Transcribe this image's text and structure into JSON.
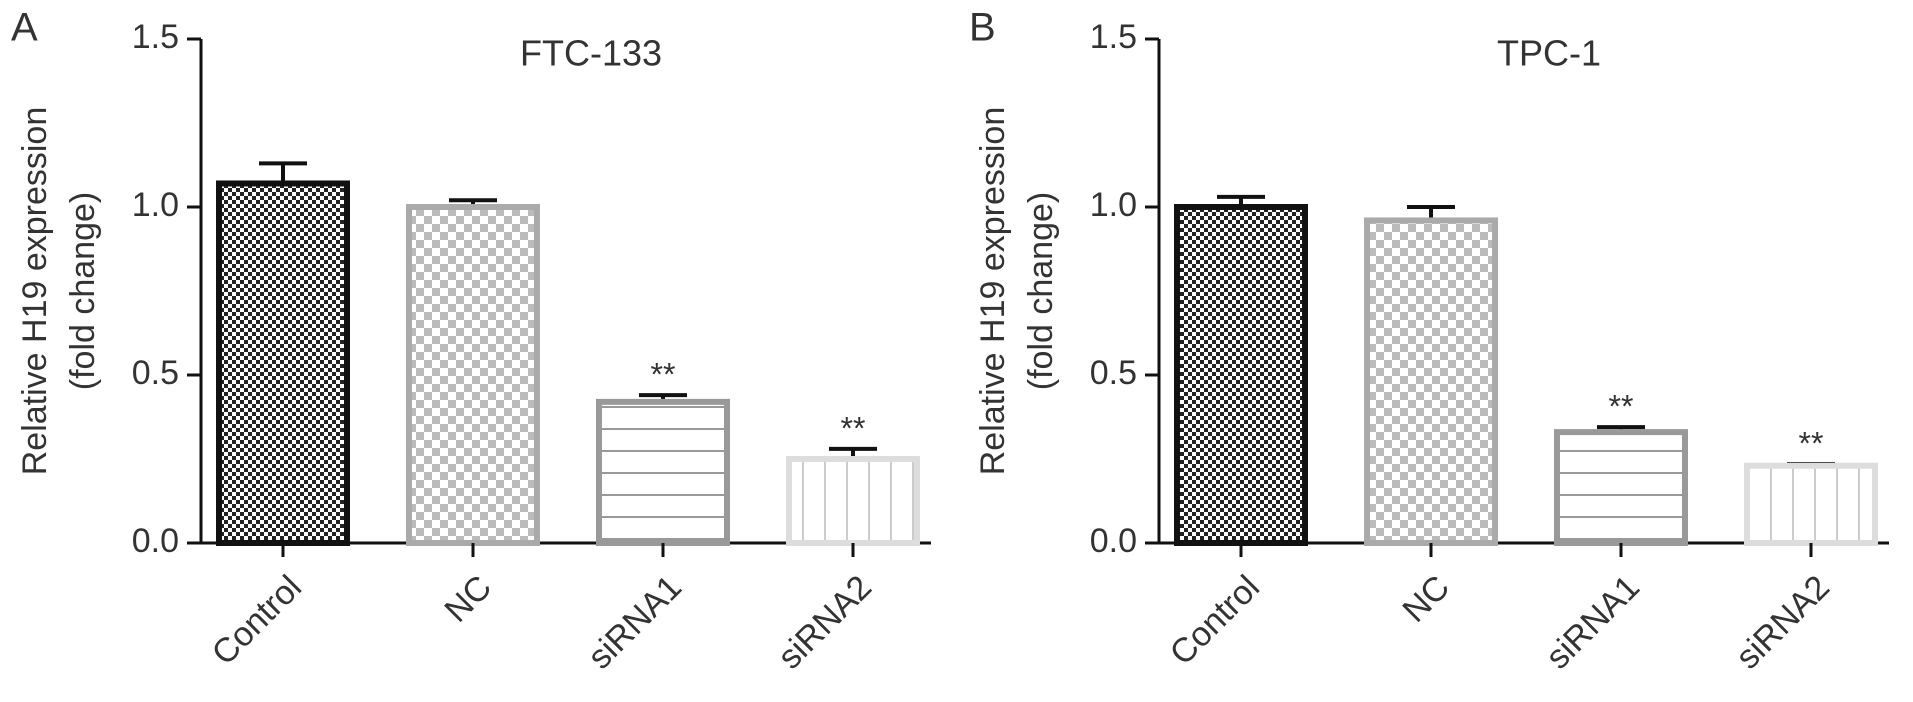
{
  "chart_data": [
    {
      "type": "bar",
      "panel": "A",
      "title": "FTC-133",
      "ylabel": [
        "Relative H19 expression",
        "(fold change)"
      ],
      "categories": [
        "Control",
        "NC",
        "siRNA1",
        "siRNA2"
      ],
      "values": [
        1.07,
        1.0,
        0.42,
        0.25
      ],
      "errors": [
        0.06,
        0.02,
        0.02,
        0.03
      ],
      "annotations": [
        null,
        null,
        "**",
        "**"
      ],
      "bar_colors": [
        "#111111",
        "#aaaaaa",
        "#999999",
        "#dddddd"
      ],
      "hatches": [
        "dense-check",
        "check",
        "horizontal",
        "vertical"
      ],
      "ylim": [
        0,
        1.5
      ],
      "yticks": [
        {
          "value": 0,
          "label": "0.0"
        },
        0.5,
        {
          "value": 1,
          "label": "1.0"
        },
        1.5
      ]
    },
    {
      "type": "bar",
      "panel": "B",
      "title": "TPC-1",
      "ylabel": [
        "Relative H19 expression",
        "(fold change)"
      ],
      "categories": [
        "Control",
        "NC",
        "siRNA1",
        "siRNA2"
      ],
      "values": [
        1.0,
        0.96,
        0.33,
        0.23
      ],
      "errors": [
        0.03,
        0.04,
        0.015,
        0.005
      ],
      "annotations": [
        null,
        null,
        "**",
        "**"
      ],
      "bar_colors": [
        "#111111",
        "#aaaaaa",
        "#999999",
        "#dddddd"
      ],
      "hatches": [
        "dense-check",
        "check",
        "horizontal",
        "vertical"
      ],
      "ylim": [
        0,
        1.5
      ],
      "yticks": [
        {
          "value": 0,
          "label": "0.0"
        },
        0.5,
        {
          "value": 1,
          "label": "1.0"
        },
        1.5
      ]
    }
  ]
}
